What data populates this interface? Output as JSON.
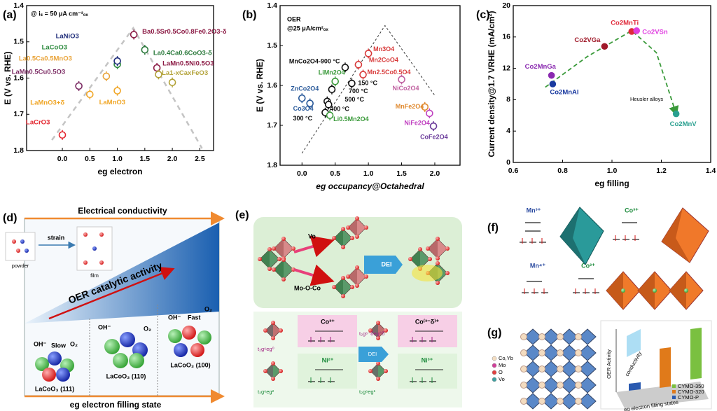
{
  "chart_data": [
    {
      "type": "scatter",
      "panel": "(a)",
      "annotation": "@ iₛ = 50 μA cm⁻²ₒₓ",
      "xlabel": "eg electron",
      "ylabel": "E (V vs. RHE)",
      "xlim": [
        -0.65,
        2.75
      ],
      "ylim": [
        1.8,
        1.4
      ],
      "xticks": [
        {
          "value": 0,
          "label": "0.0"
        },
        0.5,
        {
          "value": 1,
          "label": "1.0"
        },
        1.5,
        {
          "value": 2,
          "label": "2.0"
        },
        2.5
      ],
      "yticks": [
        1.4,
        1.5,
        1.6,
        1.7,
        1.8
      ],
      "x": [
        0,
        0.3,
        0.5,
        0.8,
        1.0,
        1.0,
        1.0,
        1.3,
        1.5,
        1.72,
        1.75,
        2.0
      ],
      "values": [
        1.757,
        1.622,
        1.645,
        1.595,
        1.635,
        1.562,
        1.553,
        1.48,
        1.522,
        1.572,
        1.59,
        1.612
      ],
      "labels": [
        "LaCrO3",
        "LaMn0.5Cu0.5O3",
        "LaMnO3+δ",
        "La0.5Ca0.5MnO3",
        "LaMnO3",
        "LaCoO3",
        "LaNiO3",
        "Ba0.5Sr0.5Co0.8Fe0.2O3-δ",
        "La0.4Ca0.6CoO3-δ",
        "LaMn0.5Ni0.5O3",
        null,
        "La1-xCaxFeO3"
      ],
      "colors": [
        "#e3262f",
        "#7b2a63",
        "#f0a626",
        "#e9a43a",
        "#f0a626",
        "#2d8a3e",
        "#1f2d7a",
        "#8c1c46",
        "#2b7a3c",
        "#8c1c46",
        "#b3a33a",
        "#b3a33a"
      ],
      "marker_fill": false,
      "guide": {
        "color": "#c4c4c4",
        "x": [
          -0.19,
          1.29,
          2.54
        ],
        "y": [
          1.771,
          1.462,
          1.794
        ]
      }
    },
    {
      "type": "scatter",
      "panel": "(b)",
      "annotation": [
        "OER",
        "@25 μA/cm²ₒₓ"
      ],
      "xlabel": "eg occupancy@Octahedral",
      "ylabel": "E (V vs. RHE)",
      "xlim": [
        -0.33,
        2.38
      ],
      "ylim": [
        1.8,
        1.4
      ],
      "xticks": [
        {
          "value": 0,
          "label": "0.0"
        },
        0.5,
        {
          "value": 1,
          "label": "1.0"
        },
        1.5,
        {
          "value": 2,
          "label": "2.0"
        }
      ],
      "yticks": [
        1.4,
        1.5,
        1.6,
        1.7,
        1.8
      ],
      "x": [
        0.65,
        1.0,
        0.85,
        0.92,
        0.5,
        0.75,
        1.5,
        0.0,
        0.45,
        0.38,
        0.12,
        0.4,
        0.35,
        0.42,
        1.85,
        1.92,
        1.98
      ],
      "values": [
        1.555,
        1.52,
        1.548,
        1.573,
        1.59,
        1.595,
        1.585,
        1.632,
        1.61,
        1.64,
        1.645,
        1.648,
        1.668,
        1.675,
        1.654,
        1.67,
        1.702
      ],
      "labels": [
        "MnCo2O4-900 °C",
        "Mn3O4",
        "Mn2CoO4",
        "Mn2.5Co0.5O4",
        "LiMn2O4",
        "150 °C",
        "NiCo2O4",
        "ZnCo2O4",
        "700 °C",
        "500 °C",
        "Co3O4",
        "400 °C",
        "300 °C",
        "Li0.5Mn2O4",
        "MnFe2O4",
        "NiFe2O4",
        "CoFe2O4"
      ],
      "colors": [
        "#111111",
        "#d83a3a",
        "#d83a3a",
        "#d83a3a",
        "#3a9a3a",
        "#111111",
        "#c060a0",
        "#2a5a9a",
        "#111111",
        "#111111",
        "#2a5a9a",
        "#111111",
        "#111111",
        "#3a9a3a",
        "#e08a30",
        "#c040c0",
        "#6a3a9a"
      ],
      "marker_fill": false,
      "guide": {
        "color": "#333333",
        "x": [
          0.0,
          1.25,
          2.0
        ],
        "y": [
          1.77,
          1.45,
          1.625
        ]
      }
    },
    {
      "type": "scatter",
      "panel": "(c)",
      "annotation": "Heusler alloys",
      "xlabel": "eg filling",
      "ylabel": "Current density@1.7 VRHE (mA/cm²)",
      "xlim": [
        0.6,
        1.4
      ],
      "ylim": [
        0,
        20
      ],
      "xticks": [
        0.6,
        0.8,
        {
          "value": 1,
          "label": "1.0"
        },
        1.2,
        1.4
      ],
      "yticks": [
        0,
        4,
        8,
        12,
        16,
        20
      ],
      "x": [
        0.76,
        0.755,
        0.97,
        1.08,
        1.1,
        1.26
      ],
      "values": [
        10.0,
        11.1,
        14.8,
        16.7,
        16.8,
        6.2
      ],
      "labels": [
        "Co2MnAl",
        "Co2MnGa",
        "Co2VGa",
        "Co2MnTi",
        "Co2VSn",
        "Co2MnV"
      ],
      "colors": [
        "#1a3aa0",
        "#8a2ab0",
        "#a01a2a",
        "#e02a3a",
        "#e040e0",
        "#2aa090"
      ],
      "marker_fill": true,
      "guide": {
        "color": "#3a9a3a",
        "x": [
          0.73,
          0.9,
          1.08,
          1.18,
          1.26
        ],
        "y": [
          9.6,
          13.5,
          16.8,
          14.0,
          6.2
        ]
      }
    }
  ],
  "panel_d": {
    "label": "(d)",
    "conductivity": "Electrical conductivity",
    "strain": "strain",
    "powder": "powder",
    "film": "film",
    "activity": "OER catalytic activity",
    "facets": [
      {
        "oh": "OH⁻",
        "rate": "Slow",
        "o2": "O₂",
        "name": "LaCoO₃ (111)"
      },
      {
        "oh": "OH⁻",
        "o2": "O₂",
        "name": "LaCoO₃ (110)"
      },
      {
        "oh": "OH⁻",
        "rate": "Fast",
        "o2": "O₂",
        "name": "LaCoO₃ (100)"
      }
    ],
    "xlabel": "eg electron filling state"
  },
  "panel_e": {
    "label": "(e)",
    "vo": "Vo",
    "moco": "Mo-O-Co",
    "dei": [
      "DEI",
      "DEI"
    ],
    "ions": [
      "Co³⁺",
      "Co⁽³⁻δ⁾⁺",
      "Ni²⁺",
      "Ni³⁺"
    ],
    "configs": [
      "t₂g⁶eg⁰",
      "t₂g⁶⁻δeg^δ",
      "t₂g⁶eg²",
      "t₂g⁶eg¹"
    ]
  },
  "panel_f": {
    "label": "(f)",
    "ions": [
      "Mn³⁺",
      "Co³⁺",
      "Mn⁴⁺",
      "Co²⁺"
    ]
  },
  "panel_g": {
    "label": "(g)",
    "legend": [
      "Co,Yb",
      "Mo",
      "O",
      "Vo"
    ],
    "ylabel": "OER Activity",
    "conductivity": "conductivity",
    "xlabel": "eg electron filling states",
    "samples": [
      "CYMO-350",
      "CYMO-320",
      "CYMO-P"
    ]
  }
}
